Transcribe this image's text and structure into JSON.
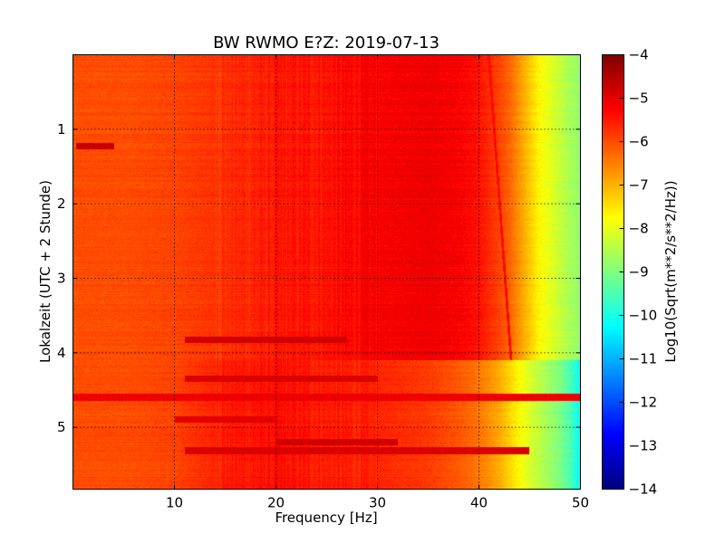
{
  "chart_data": {
    "type": "heatmap",
    "title": "BW RWMO E?Z: 2019-07-13",
    "xlabel": "Frequency [Hz]",
    "ylabel": "Lokalzeit (UTC + 2 Stunde)",
    "xlim": [
      0,
      50
    ],
    "ylim": [
      0,
      5.83
    ],
    "y_inverted": true,
    "xticks": [
      10,
      20,
      30,
      40,
      50
    ],
    "xtick_labels": [
      "10",
      "20",
      "30",
      "40",
      "50"
    ],
    "yticks": [
      1,
      2,
      3,
      4,
      5
    ],
    "ytick_labels": [
      "1",
      "2",
      "3",
      "4",
      "5"
    ],
    "grid": true,
    "colormap": "jet",
    "colorbar": {
      "label": "Log10(Sqrt(m**2/s**2/Hz))",
      "range": [
        -14,
        -4
      ],
      "ticks": [
        -4,
        -5,
        -6,
        -7,
        -8,
        -9,
        -10,
        -11,
        -12,
        -13,
        -14
      ],
      "tick_labels": [
        "−4",
        "−5",
        "−6",
        "−7",
        "−8",
        "−9",
        "−10",
        "−11",
        "−12",
        "−13",
        "−14"
      ]
    },
    "spectrum_profile": {
      "frequency_hz": [
        0,
        5,
        10,
        15,
        20,
        25,
        30,
        35,
        38,
        40,
        42,
        43,
        44,
        45,
        46,
        47,
        48,
        49,
        50
      ],
      "log_amplitude_before_4h": [
        -6.0,
        -6.0,
        -5.9,
        -5.7,
        -5.5,
        -5.4,
        -5.2,
        -5.1,
        -5.2,
        -5.4,
        -5.9,
        -6.2,
        -6.7,
        -7.2,
        -7.7,
        -8.0,
        -8.3,
        -8.6,
        -8.8
      ],
      "log_amplitude_after_4h": [
        -6.0,
        -6.0,
        -5.9,
        -5.5,
        -5.4,
        -5.5,
        -5.6,
        -5.8,
        -6.1,
        -6.4,
        -6.9,
        -7.3,
        -7.7,
        -8.1,
        -8.4,
        -8.7,
        -9.0,
        -9.5,
        -10.2
      ]
    },
    "events": [
      {
        "time_h": 1.22,
        "freq_hz": [
          0.3,
          4
        ],
        "log_amplitude": -4.7
      },
      {
        "time_h": 3.83,
        "freq_hz": [
          11,
          27
        ],
        "log_amplitude": -4.8
      },
      {
        "time_h": 4.35,
        "freq_hz": [
          11,
          30
        ],
        "log_amplitude": -4.9
      },
      {
        "time_h": 4.6,
        "freq_hz": [
          0,
          50
        ],
        "log_amplitude": -5.1
      },
      {
        "time_h": 4.9,
        "freq_hz": [
          10,
          20
        ],
        "log_amplitude": -5.0
      },
      {
        "time_h": 5.2,
        "freq_hz": [
          20,
          32
        ],
        "log_amplitude": -4.8
      },
      {
        "time_h": 5.32,
        "freq_hz": [
          11,
          45
        ],
        "log_amplitude": -4.9
      }
    ],
    "drifting_line": {
      "start": {
        "time_h": 0.0,
        "freq_hz": 41.0
      },
      "end": {
        "time_h": 4.1,
        "freq_hz": 43.2
      },
      "log_amplitude": -5.3
    }
  }
}
